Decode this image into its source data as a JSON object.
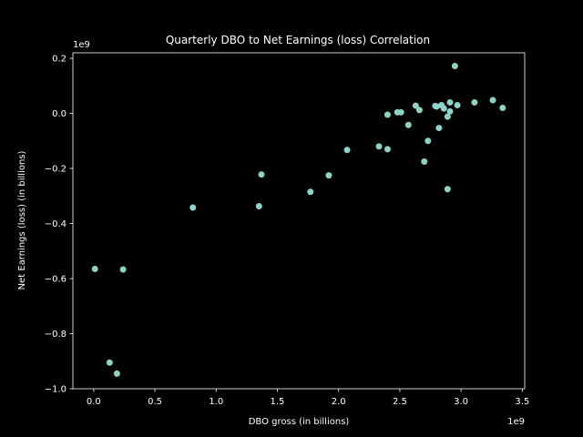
{
  "chart_data": {
    "type": "scatter",
    "title": "Quarterly DBO to Net Earnings (loss) Correlation",
    "xlabel": "DBO gross (in billions)",
    "ylabel": "Net Earnings (loss) (in billions)",
    "x_offset_label": "1e9",
    "y_offset_label": "1e9",
    "xlim": [
      -0.17,
      3.52
    ],
    "ylim": [
      -1.0,
      0.22
    ],
    "x_ticks": [
      0.0,
      0.5,
      1.0,
      1.5,
      2.0,
      2.5,
      3.0,
      3.5
    ],
    "x_tick_labels": [
      "0.0",
      "0.5",
      "1.0",
      "1.5",
      "2.0",
      "2.5",
      "3.0",
      "3.5"
    ],
    "y_ticks": [
      -1.0,
      -0.8,
      -0.6,
      -0.4,
      -0.2,
      0.0,
      0.2
    ],
    "y_tick_labels": [
      "−1.0",
      "−0.8",
      "−0.6",
      "−0.4",
      "−0.2",
      "0.0",
      "0.2"
    ],
    "marker_color": "#8dd3c7",
    "axis_color": "#ffffff",
    "background": "#000000",
    "grid": false,
    "points": [
      {
        "x": 0.01,
        "y": -0.565
      },
      {
        "x": 0.13,
        "y": -0.905
      },
      {
        "x": 0.19,
        "y": -0.945
      },
      {
        "x": 0.24,
        "y": -0.567
      },
      {
        "x": 0.81,
        "y": -0.342
      },
      {
        "x": 1.35,
        "y": -0.337
      },
      {
        "x": 1.37,
        "y": -0.222
      },
      {
        "x": 1.77,
        "y": -0.285
      },
      {
        "x": 1.92,
        "y": -0.225
      },
      {
        "x": 2.07,
        "y": -0.133
      },
      {
        "x": 2.33,
        "y": -0.12
      },
      {
        "x": 2.4,
        "y": -0.13
      },
      {
        "x": 2.4,
        "y": -0.005
      },
      {
        "x": 2.48,
        "y": 0.004
      },
      {
        "x": 2.51,
        "y": 0.004
      },
      {
        "x": 2.57,
        "y": -0.042
      },
      {
        "x": 2.63,
        "y": 0.028
      },
      {
        "x": 2.66,
        "y": 0.012
      },
      {
        "x": 2.7,
        "y": -0.175
      },
      {
        "x": 2.73,
        "y": -0.1
      },
      {
        "x": 2.79,
        "y": 0.027
      },
      {
        "x": 2.8,
        "y": 0.025
      },
      {
        "x": 2.82,
        "y": -0.053
      },
      {
        "x": 2.84,
        "y": 0.03
      },
      {
        "x": 2.86,
        "y": 0.018
      },
      {
        "x": 2.89,
        "y": -0.275
      },
      {
        "x": 2.89,
        "y": -0.012
      },
      {
        "x": 2.91,
        "y": 0.04
      },
      {
        "x": 2.91,
        "y": 0.007
      },
      {
        "x": 2.95,
        "y": 0.172
      },
      {
        "x": 2.97,
        "y": 0.03
      },
      {
        "x": 3.11,
        "y": 0.04
      },
      {
        "x": 3.26,
        "y": 0.048
      },
      {
        "x": 3.34,
        "y": 0.02
      }
    ]
  }
}
